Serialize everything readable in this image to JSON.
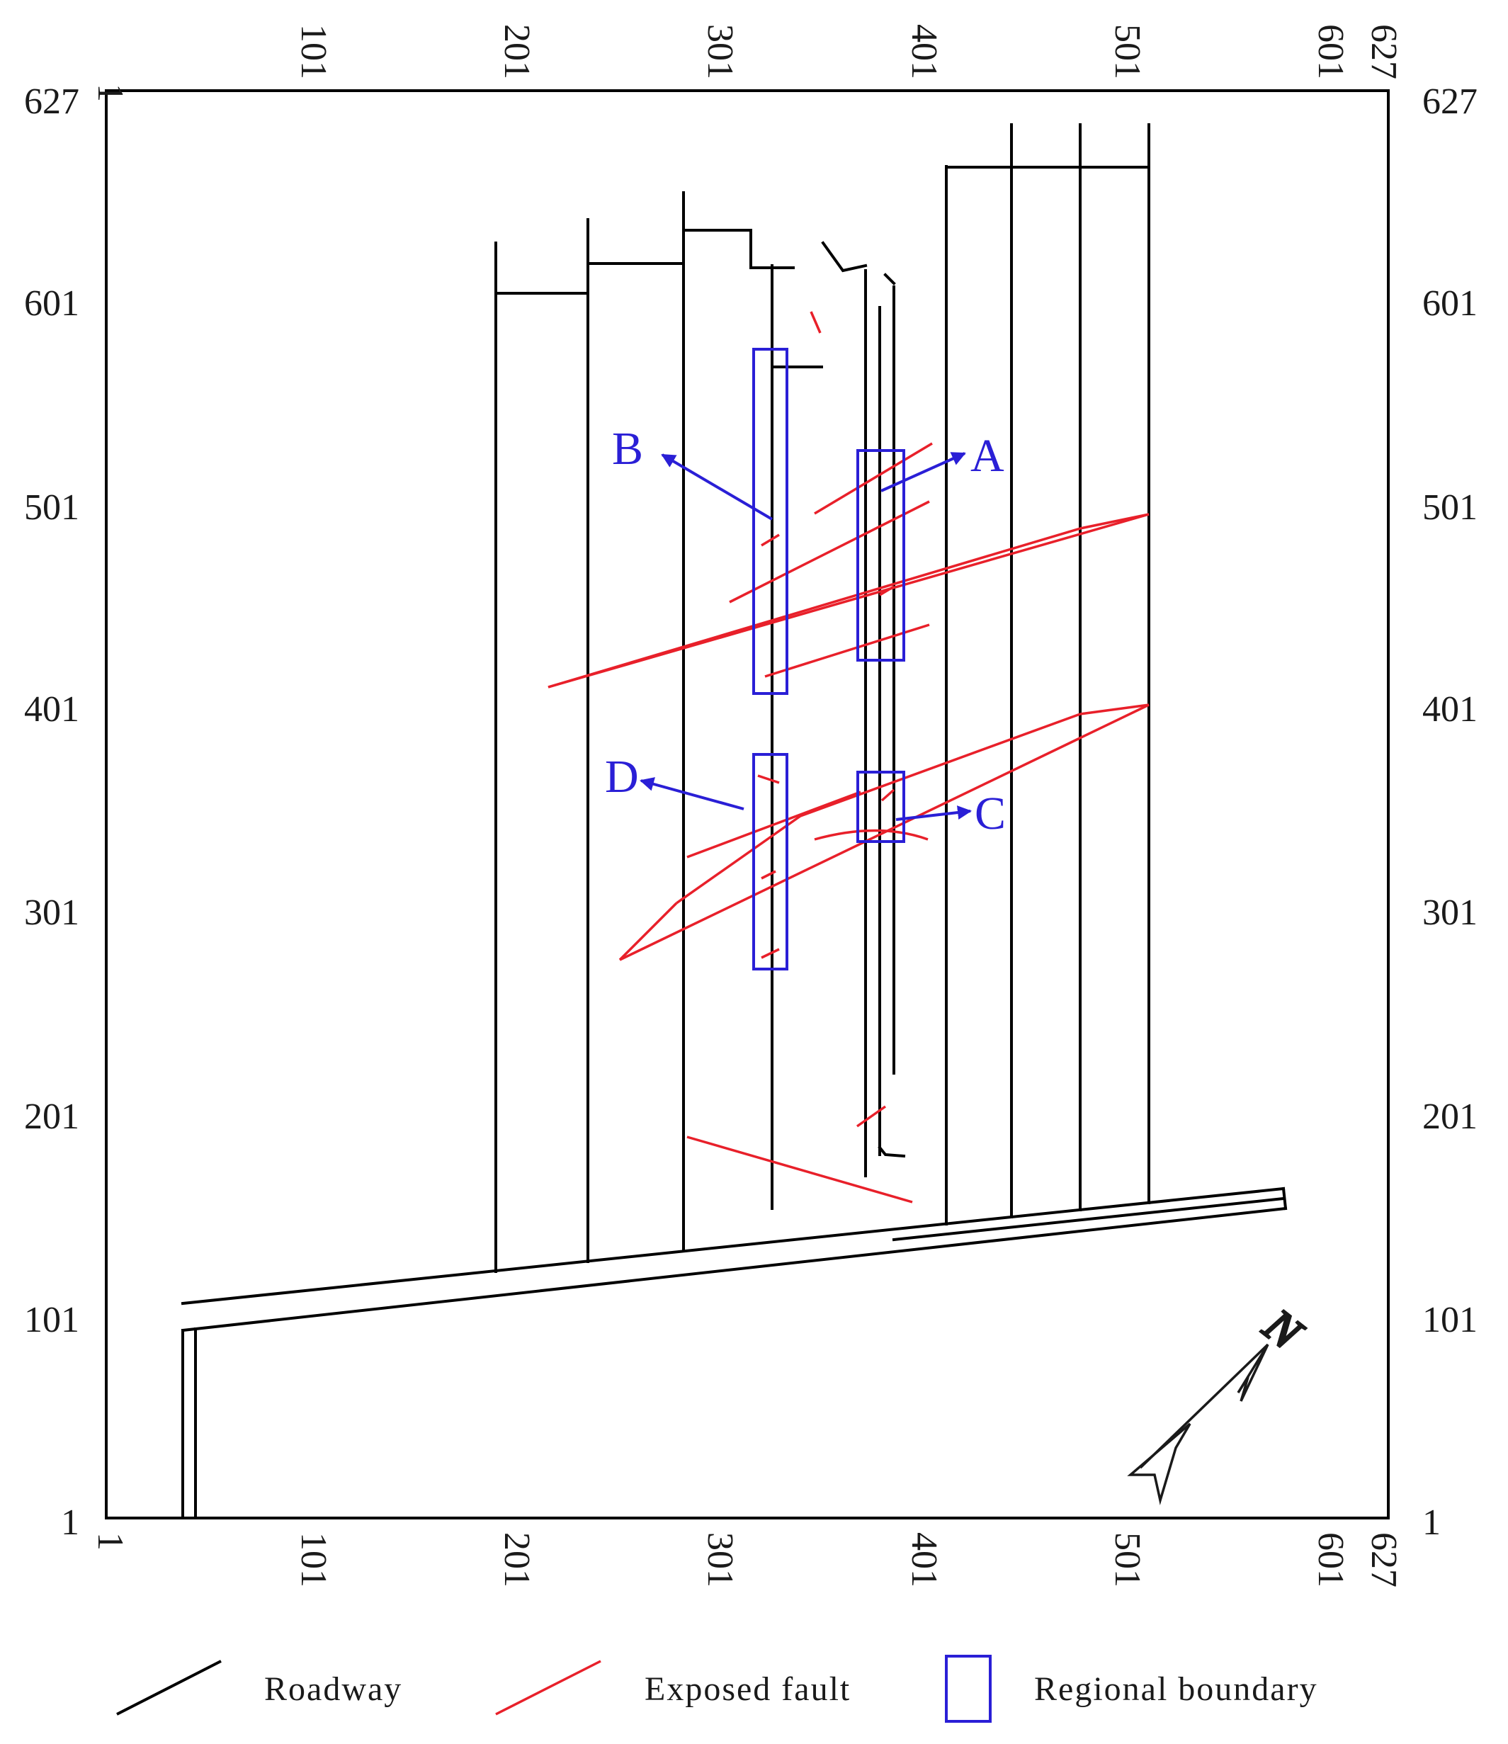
{
  "axes": {
    "ticks": [
      "1",
      "101",
      "201",
      "301",
      "401",
      "501",
      "601",
      "627"
    ]
  },
  "zones": {
    "a": "A",
    "b": "B",
    "c": "C",
    "d": "D"
  },
  "compass": {
    "label": "N"
  },
  "legend": {
    "roadway": "Roadway",
    "fault": "Exposed fault",
    "boundary": "Regional boundary"
  },
  "colors": {
    "roadway": "#000000",
    "fault": "#e8202a",
    "boundary": "#2a1fd6"
  }
}
